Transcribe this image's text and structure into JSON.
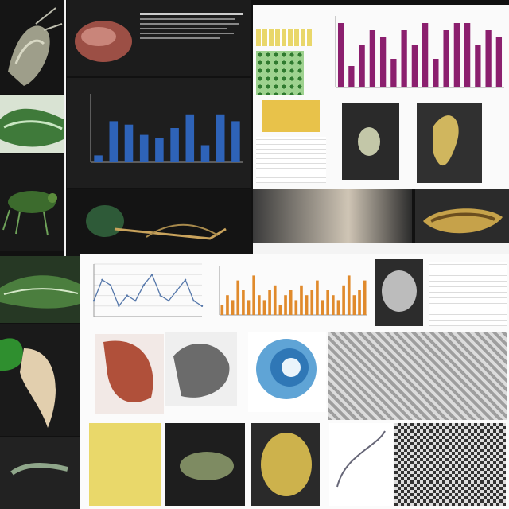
{
  "chart_data": [
    {
      "type": "bar",
      "title": "",
      "xlabel": "",
      "ylabel": "",
      "ylim": [
        0,
        10
      ],
      "series": [
        {
          "values": [
            1,
            6,
            5.5,
            4,
            3.5,
            5,
            7,
            2.5,
            7,
            6
          ]
        }
      ],
      "color": "#2e63b8"
    },
    {
      "type": "bar",
      "title": "",
      "ylim": [
        0,
        10
      ],
      "series": [
        {
          "values": [
            9,
            3,
            6,
            8,
            7,
            4,
            8,
            6,
            9,
            4,
            8,
            9,
            9,
            6,
            8,
            7
          ]
        }
      ],
      "color": "#8b1f6e"
    },
    {
      "type": "line",
      "title": "",
      "ylim": [
        0,
        10
      ],
      "series": [
        {
          "values": [
            3,
            7,
            6,
            2,
            4,
            3,
            6,
            8,
            4,
            3,
            5,
            7,
            3,
            2
          ]
        }
      ],
      "color": "#5577aa"
    },
    {
      "type": "bar",
      "title": "",
      "ylim": [
        0,
        10
      ],
      "series": [
        {
          "values": [
            2,
            4,
            3,
            7,
            5,
            3,
            8,
            4,
            3,
            5,
            6,
            2,
            4,
            5,
            3,
            6,
            4,
            5,
            7,
            3,
            5,
            4,
            3,
            6,
            8,
            4,
            5,
            7
          ]
        }
      ],
      "color": "#e08a2c"
    }
  ],
  "colors": {
    "background": "#111111",
    "dark_panel": "#1d1d1d",
    "light_panel": "#f7f7f7",
    "bar_blue": "#2e63b8",
    "bar_purple": "#8b1f6e",
    "bar_orange": "#e08a2c",
    "specimen_green": "#2f6b2a",
    "specimen_red": "#b0503a",
    "specimen_yellow": "#d8b83c"
  }
}
